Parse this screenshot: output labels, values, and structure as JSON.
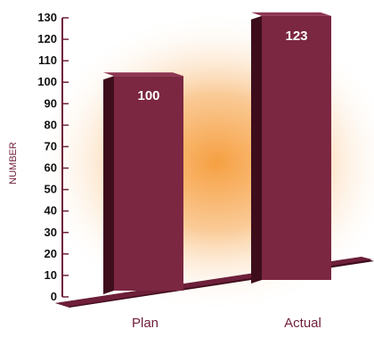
{
  "chart_data": {
    "type": "bar",
    "title": "",
    "xlabel": "",
    "ylabel": "NUMBER",
    "ylim": [
      0,
      130
    ],
    "yticks": [
      0,
      10,
      20,
      30,
      40,
      50,
      60,
      70,
      80,
      90,
      100,
      110,
      120,
      130
    ],
    "categories": [
      "Plan",
      "Actual"
    ],
    "values": [
      100,
      123
    ],
    "data_labels": [
      "100",
      "123"
    ],
    "grid": false,
    "legend": "none",
    "style": "3d-bars",
    "colors": {
      "bar_front": "#7b2741",
      "bar_side": "#3e0d1c",
      "bar_top": "#8e3553",
      "floor": "#6e1f39",
      "floor_edge": "#3e0d1c",
      "axis": "#6e1f39",
      "tick_label": "#111111",
      "category_label": "#6e1f39",
      "data_label": "#ffffff",
      "glow_center": "#f6a042"
    }
  }
}
